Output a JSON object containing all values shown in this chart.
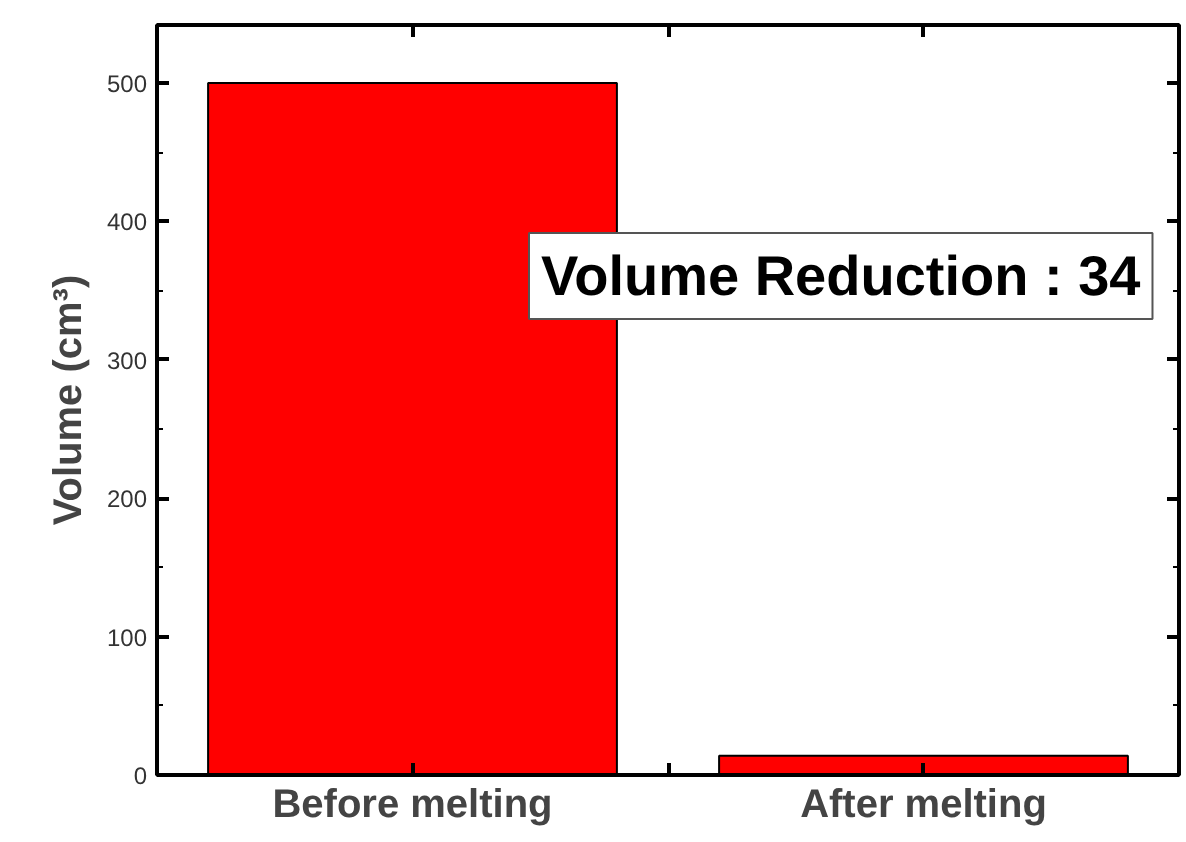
{
  "chart_data": {
    "type": "bar",
    "categories": [
      "Before melting",
      "After melting"
    ],
    "values": [
      500,
      14
    ],
    "color": "#ff0000",
    "ylabel": "Volume (cm³)",
    "ylim": [
      0,
      542
    ],
    "yticks": [
      0,
      100,
      200,
      300,
      400,
      500
    ],
    "annotations": [
      "Volume Reduction : 34"
    ],
    "grid": false
  }
}
